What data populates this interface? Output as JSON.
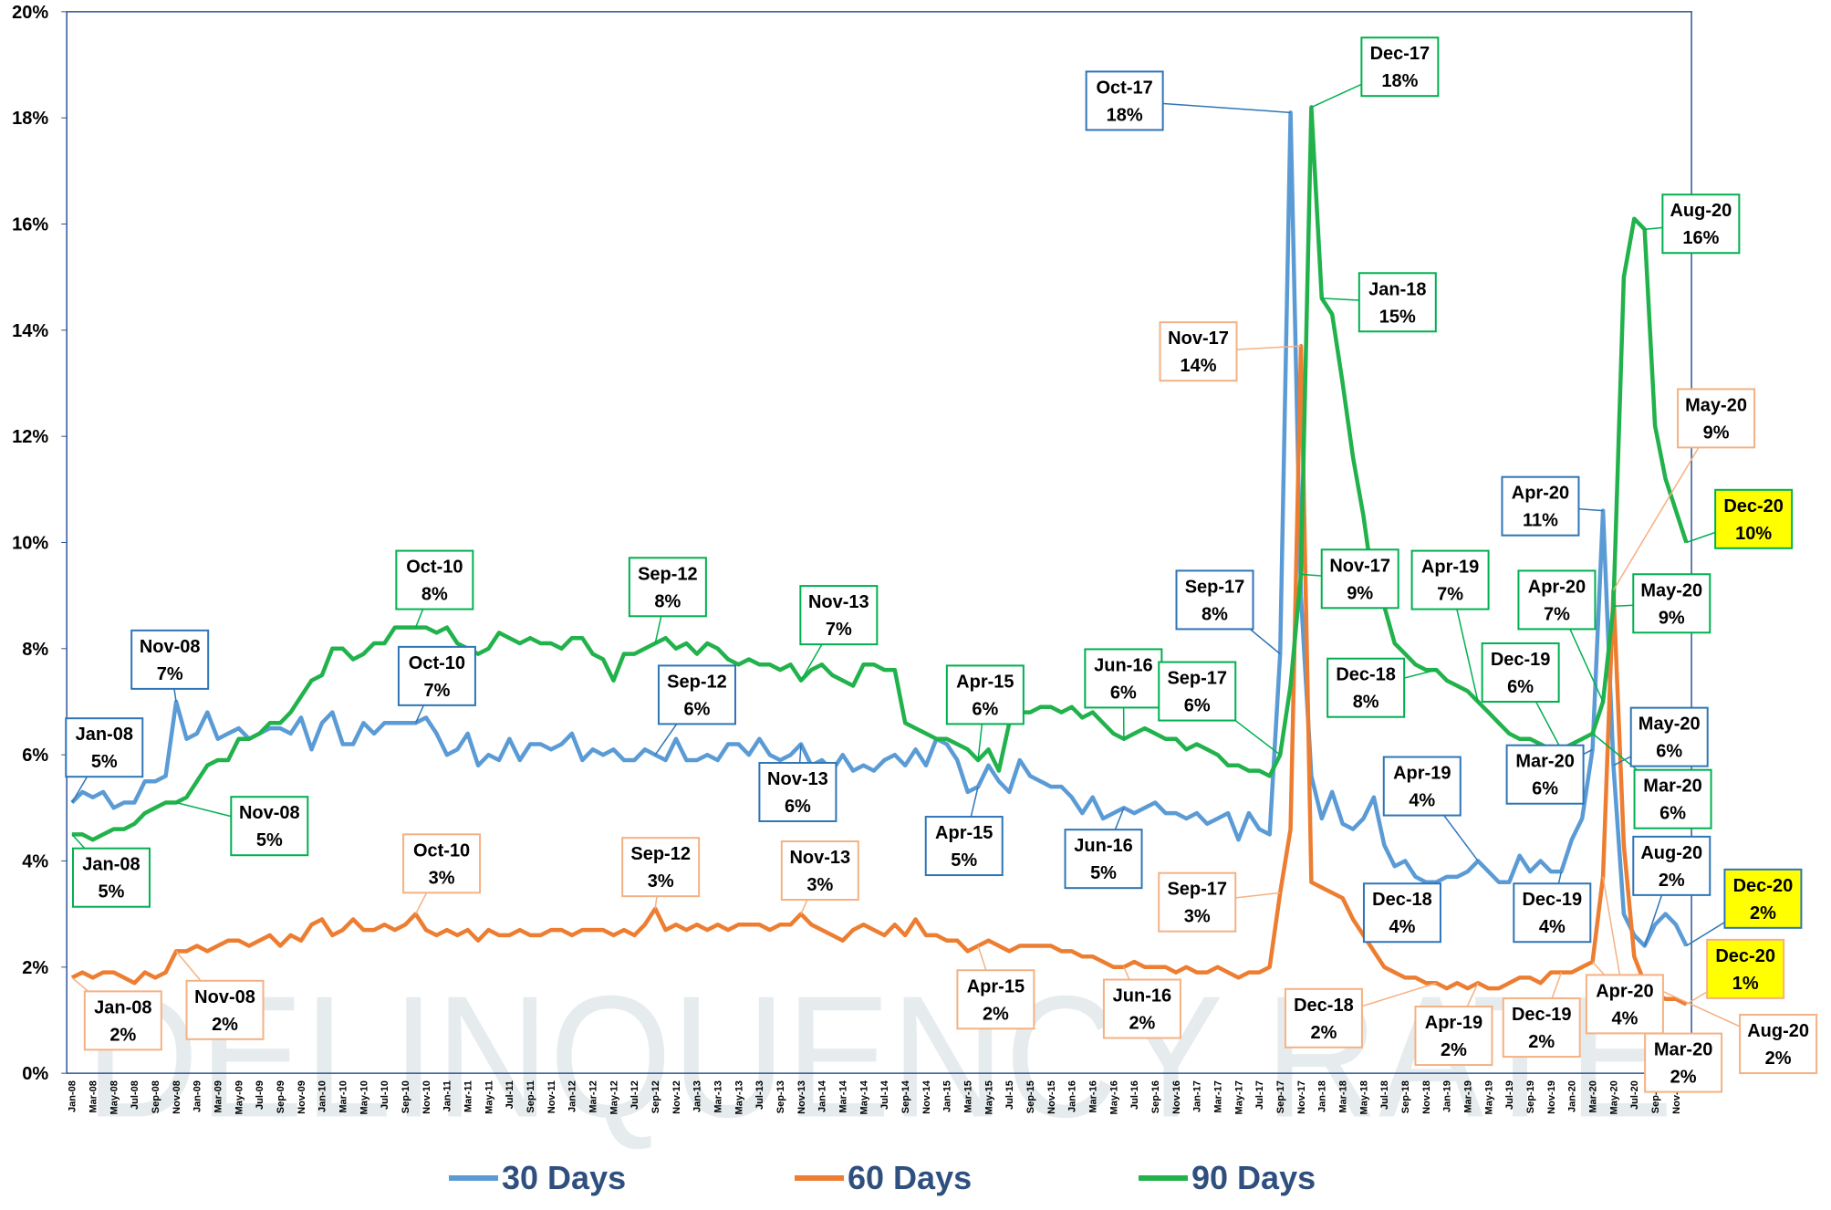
{
  "chart_data": {
    "type": "line",
    "watermark": "DELINQUENCY RATE",
    "categories": [
      "Jan-08",
      null,
      "Mar-08",
      null,
      "May-08",
      null,
      "Jul-08",
      null,
      "Sep-08",
      null,
      "Nov-08",
      null,
      "Jan-09",
      null,
      "Mar-09",
      null,
      "May-09",
      null,
      "Jul-09",
      null,
      "Sep-09",
      null,
      "Nov-09",
      null,
      "Jan-10",
      null,
      "Mar-10",
      null,
      "May-10",
      null,
      "Jul-10",
      null,
      "Sep-10",
      null,
      "Nov-10",
      null,
      "Jan-11",
      null,
      "Mar-11",
      null,
      "May-11",
      null,
      "Jul-11",
      null,
      "Sep-11",
      null,
      "Nov-11",
      null,
      "Jan-12",
      null,
      "Mar-12",
      null,
      "May-12",
      null,
      "Jul-12",
      null,
      "Sep-12",
      null,
      "Nov-12",
      null,
      "Jan-13",
      null,
      "Mar-13",
      null,
      "May-13",
      null,
      "Jul-13",
      null,
      "Sep-13",
      null,
      "Nov-13",
      null,
      "Jan-14",
      null,
      "Mar-14",
      null,
      "May-14",
      null,
      "Jul-14",
      null,
      "Sep-14",
      null,
      "Nov-14",
      null,
      "Jan-15",
      null,
      "Mar-15",
      null,
      "May-15",
      null,
      "Jul-15",
      null,
      "Sep-15",
      null,
      "Nov-15",
      null,
      "Jan-16",
      null,
      "Mar-16",
      null,
      "May-16",
      null,
      "Jul-16",
      null,
      "Sep-16",
      null,
      "Nov-16",
      null,
      "Jan-17",
      null,
      "Mar-17",
      null,
      "May-17",
      null,
      "Jul-17",
      null,
      "Sep-17",
      null,
      "Nov-17",
      null,
      "Jan-18",
      null,
      "Mar-18",
      null,
      "May-18",
      null,
      "Jul-18",
      null,
      "Sep-18",
      null,
      "Nov-18",
      null,
      "Jan-19",
      null,
      "Mar-19",
      null,
      "May-19",
      null,
      "Jul-19",
      null,
      "Sep-19",
      null,
      "Nov-19",
      null,
      "Jan-20",
      null,
      "Mar-20",
      null,
      "May-20",
      null,
      "Jul-20",
      null,
      "Sep-20",
      null,
      "Nov-20",
      null
    ],
    "ylim": [
      0,
      20
    ],
    "yticks": [
      {
        "value": 0,
        "label": "0%"
      },
      {
        "value": 2,
        "label": "2%"
      },
      {
        "value": 4,
        "label": "4%"
      },
      {
        "value": 6,
        "label": "6%"
      },
      {
        "value": 8,
        "label": "8%"
      },
      {
        "value": 10,
        "label": "10%"
      },
      {
        "value": 12,
        "label": "12%"
      },
      {
        "value": 14,
        "label": "14%"
      },
      {
        "value": 16,
        "label": "16%"
      },
      {
        "value": 18,
        "label": "18%"
      },
      {
        "value": 20,
        "label": "20%"
      }
    ],
    "grid": false,
    "legend": "bottom",
    "series": [
      {
        "name": "30 Days",
        "color": "#5b9bd5",
        "box_color": "#2e75b6",
        "values": [
          5.1,
          5.3,
          5.2,
          5.3,
          5.0,
          5.1,
          5.1,
          5.5,
          5.5,
          5.6,
          7.0,
          6.3,
          6.4,
          6.8,
          6.3,
          6.4,
          6.5,
          6.3,
          6.4,
          6.5,
          6.5,
          6.4,
          6.7,
          6.1,
          6.6,
          6.8,
          6.2,
          6.2,
          6.6,
          6.4,
          6.6,
          6.6,
          6.6,
          6.6,
          6.7,
          6.4,
          6.0,
          6.1,
          6.4,
          5.8,
          6.0,
          5.9,
          6.3,
          5.9,
          6.2,
          6.2,
          6.1,
          6.2,
          6.4,
          5.9,
          6.1,
          6.0,
          6.1,
          5.9,
          5.9,
          6.1,
          6.0,
          5.9,
          6.3,
          5.9,
          5.9,
          6.0,
          5.9,
          6.2,
          6.2,
          6.0,
          6.3,
          6.0,
          5.9,
          6.0,
          6.2,
          5.8,
          5.9,
          5.7,
          6.0,
          5.7,
          5.8,
          5.7,
          5.9,
          6.0,
          5.8,
          6.1,
          5.8,
          6.3,
          6.2,
          5.9,
          5.3,
          5.4,
          5.8,
          5.5,
          5.3,
          5.9,
          5.6,
          5.5,
          5.4,
          5.4,
          5.2,
          4.9,
          5.2,
          4.8,
          4.9,
          5.0,
          4.9,
          5.0,
          5.1,
          4.9,
          4.9,
          4.8,
          4.9,
          4.7,
          4.8,
          4.9,
          4.4,
          4.9,
          4.6,
          4.5,
          7.9,
          18.1,
          9.0,
          5.6,
          4.8,
          5.3,
          4.7,
          4.6,
          4.8,
          5.2,
          4.3,
          3.9,
          4.0,
          3.7,
          3.6,
          3.6,
          3.7,
          3.7,
          3.8,
          4.0,
          3.8,
          3.6,
          3.6,
          4.1,
          3.8,
          4.0,
          3.8,
          3.8,
          4.4,
          4.8,
          6.1,
          10.6,
          5.8,
          3.0,
          2.6,
          2.4,
          2.8,
          3.0,
          2.8,
          2.4
        ],
        "annotations": [
          {
            "date": "Jan-08",
            "label": "5%"
          },
          {
            "date": "Nov-08",
            "label": "7%"
          },
          {
            "date": "Oct-10",
            "label": "7%"
          },
          {
            "date": "Sep-12",
            "label": "6%"
          },
          {
            "date": "Nov-13",
            "label": "6%"
          },
          {
            "date": "Apr-15",
            "label": "5%"
          },
          {
            "date": "Jun-16",
            "label": "5%"
          },
          {
            "date": "Sep-17",
            "label": "8%"
          },
          {
            "date": "Oct-17",
            "label": "18%"
          },
          {
            "date": "Dec-18",
            "label": "4%"
          },
          {
            "date": "Apr-19",
            "label": "4%"
          },
          {
            "date": "Dec-19",
            "label": "4%"
          },
          {
            "date": "Mar-20",
            "label": "6%"
          },
          {
            "date": "Apr-20",
            "label": "11%"
          },
          {
            "date": "May-20",
            "label": "6%"
          },
          {
            "date": "Aug-20",
            "label": "2%"
          },
          {
            "date": "Dec-20",
            "label": "2%"
          }
        ]
      },
      {
        "name": "60 Days",
        "color": "#ed7d31",
        "box_color": "#f4b183",
        "values": [
          1.8,
          1.9,
          1.8,
          1.9,
          1.9,
          1.8,
          1.7,
          1.9,
          1.8,
          1.9,
          2.3,
          2.3,
          2.4,
          2.3,
          2.4,
          2.5,
          2.5,
          2.4,
          2.5,
          2.6,
          2.4,
          2.6,
          2.5,
          2.8,
          2.9,
          2.6,
          2.7,
          2.9,
          2.7,
          2.7,
          2.8,
          2.7,
          2.8,
          3.0,
          2.7,
          2.6,
          2.7,
          2.6,
          2.7,
          2.5,
          2.7,
          2.6,
          2.6,
          2.7,
          2.6,
          2.6,
          2.7,
          2.7,
          2.6,
          2.7,
          2.7,
          2.7,
          2.6,
          2.7,
          2.6,
          2.8,
          3.1,
          2.7,
          2.8,
          2.7,
          2.8,
          2.7,
          2.8,
          2.7,
          2.8,
          2.8,
          2.8,
          2.7,
          2.8,
          2.8,
          3.0,
          2.8,
          2.7,
          2.6,
          2.5,
          2.7,
          2.8,
          2.7,
          2.6,
          2.8,
          2.6,
          2.9,
          2.6,
          2.6,
          2.5,
          2.5,
          2.3,
          2.4,
          2.5,
          2.4,
          2.3,
          2.4,
          2.4,
          2.4,
          2.4,
          2.3,
          2.3,
          2.2,
          2.2,
          2.1,
          2.0,
          2.0,
          2.1,
          2.0,
          2.0,
          2.0,
          1.9,
          2.0,
          1.9,
          1.9,
          2.0,
          1.9,
          1.8,
          1.9,
          1.9,
          2.0,
          3.4,
          4.6,
          13.7,
          3.6,
          3.5,
          3.4,
          3.3,
          2.9,
          2.6,
          2.3,
          2.0,
          1.9,
          1.8,
          1.8,
          1.7,
          1.7,
          1.6,
          1.7,
          1.6,
          1.7,
          1.6,
          1.6,
          1.7,
          1.8,
          1.8,
          1.7,
          1.9,
          1.9,
          1.9,
          2.0,
          2.1,
          3.7,
          9.1,
          4.3,
          2.2,
          1.7,
          1.5,
          1.4,
          1.4,
          1.3
        ],
        "annotations": [
          {
            "date": "Jan-08",
            "label": "2%"
          },
          {
            "date": "Nov-08",
            "label": "2%"
          },
          {
            "date": "Oct-10",
            "label": "3%"
          },
          {
            "date": "Sep-12",
            "label": "3%"
          },
          {
            "date": "Nov-13",
            "label": "3%"
          },
          {
            "date": "Apr-15",
            "label": "2%"
          },
          {
            "date": "Jun-16",
            "label": "2%"
          },
          {
            "date": "Sep-17",
            "label": "3%"
          },
          {
            "date": "Nov-17",
            "label": "14%"
          },
          {
            "date": "Dec-18",
            "label": "2%"
          },
          {
            "date": "Apr-19",
            "label": "2%"
          },
          {
            "date": "Dec-19",
            "label": "2%"
          },
          {
            "date": "Apr-20",
            "label": "4%"
          },
          {
            "date": "Mar-20",
            "label": "2%"
          },
          {
            "date": "May-20",
            "label": "9%"
          },
          {
            "date": "Aug-20",
            "label": "2%"
          },
          {
            "date": "Dec-20",
            "label": "1%"
          }
        ]
      },
      {
        "name": "90 Days",
        "color": "#21b24b",
        "box_color": "#00b050",
        "values": [
          4.5,
          4.5,
          4.4,
          4.5,
          4.6,
          4.6,
          4.7,
          4.9,
          5.0,
          5.1,
          5.1,
          5.2,
          5.5,
          5.8,
          5.9,
          5.9,
          6.3,
          6.3,
          6.4,
          6.6,
          6.6,
          6.8,
          7.1,
          7.4,
          7.5,
          8.0,
          8.0,
          7.8,
          7.9,
          8.1,
          8.1,
          8.4,
          8.4,
          8.4,
          8.4,
          8.3,
          8.4,
          8.1,
          8.0,
          7.9,
          8.0,
          8.3,
          8.2,
          8.1,
          8.2,
          8.1,
          8.1,
          8.0,
          8.2,
          8.2,
          7.9,
          7.8,
          7.4,
          7.9,
          7.9,
          8.0,
          8.1,
          8.2,
          8.0,
          8.1,
          7.9,
          8.1,
          8.0,
          7.8,
          7.7,
          7.8,
          7.7,
          7.7,
          7.6,
          7.7,
          7.4,
          7.6,
          7.7,
          7.5,
          7.4,
          7.3,
          7.7,
          7.7,
          7.6,
          7.6,
          6.6,
          6.5,
          6.4,
          6.3,
          6.3,
          6.2,
          6.1,
          5.9,
          6.1,
          5.7,
          6.6,
          6.8,
          6.8,
          6.9,
          6.9,
          6.8,
          6.9,
          6.7,
          6.8,
          6.6,
          6.4,
          6.3,
          6.4,
          6.5,
          6.4,
          6.3,
          6.3,
          6.1,
          6.2,
          6.1,
          6.0,
          5.8,
          5.8,
          5.7,
          5.7,
          5.6,
          6.0,
          7.3,
          9.4,
          18.2,
          14.6,
          14.3,
          13.0,
          11.6,
          10.5,
          9.1,
          8.8,
          8.1,
          7.9,
          7.7,
          7.6,
          7.6,
          7.4,
          7.3,
          7.2,
          7.0,
          6.8,
          6.6,
          6.4,
          6.3,
          6.3,
          6.2,
          6.1,
          6.1,
          6.2,
          6.3,
          6.4,
          7.0,
          8.8,
          15.0,
          16.1,
          15.9,
          12.2,
          11.2,
          10.6,
          10.0
        ],
        "annotations": [
          {
            "date": "Jan-08",
            "label": "5%"
          },
          {
            "date": "Nov-08",
            "label": "5%"
          },
          {
            "date": "Oct-10",
            "label": "8%"
          },
          {
            "date": "Sep-12",
            "label": "8%"
          },
          {
            "date": "Nov-13",
            "label": "7%"
          },
          {
            "date": "Apr-15",
            "label": "6%"
          },
          {
            "date": "Jun-16",
            "label": "6%"
          },
          {
            "date": "Sep-17",
            "label": "6%"
          },
          {
            "date": "Dec-17",
            "label": "18%"
          },
          {
            "date": "Jan-18",
            "label": "15%"
          },
          {
            "date": "Nov-17",
            "label": "9%"
          },
          {
            "date": "Dec-18",
            "label": "8%"
          },
          {
            "date": "Apr-19",
            "label": "7%"
          },
          {
            "date": "Dec-19",
            "label": "6%"
          },
          {
            "date": "Mar-20",
            "label": "6%"
          },
          {
            "date": "Apr-20",
            "label": "7%"
          },
          {
            "date": "May-20",
            "label": "9%"
          },
          {
            "date": "Aug-20",
            "label": "16%"
          },
          {
            "date": "Dec-20",
            "label": "10%"
          }
        ]
      }
    ]
  }
}
